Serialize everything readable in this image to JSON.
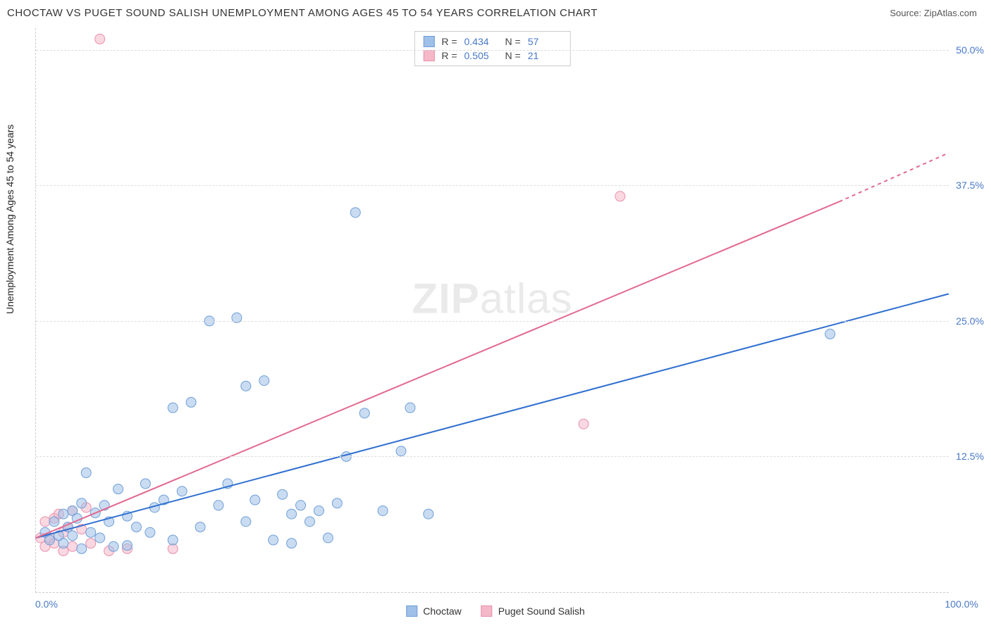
{
  "header": {
    "title": "CHOCTAW VS PUGET SOUND SALISH UNEMPLOYMENT AMONG AGES 45 TO 54 YEARS CORRELATION CHART",
    "source_prefix": "Source: ",
    "source_link": "ZipAtlas.com"
  },
  "chart": {
    "type": "scatter",
    "ylabel": "Unemployment Among Ages 45 to 54 years",
    "xlim": [
      0,
      100
    ],
    "ylim": [
      0,
      52
    ],
    "y_ticks": [
      {
        "v": 12.5,
        "label": "12.5%"
      },
      {
        "v": 25.0,
        "label": "25.0%"
      },
      {
        "v": 37.5,
        "label": "37.5%"
      },
      {
        "v": 50.0,
        "label": "50.0%"
      }
    ],
    "x_ticks": [
      {
        "v": 0,
        "label": "0.0%"
      },
      {
        "v": 100,
        "label": "100.0%"
      }
    ],
    "grid_color": "#dddddd",
    "background_color": "#ffffff",
    "marker_radius": 7,
    "marker_opacity": 0.55,
    "line_width": 2,
    "series": [
      {
        "name": "Choctaw",
        "color_fill": "#9fc0e8",
        "color_stroke": "#6f9fd8",
        "line_color": "#2f6fd0",
        "R": "0.434",
        "N": "57",
        "trend": {
          "x1": 0,
          "y1": 5.0,
          "x2": 100,
          "y2": 27.5,
          "dash_after_x": 100
        },
        "points": [
          [
            1,
            5.5
          ],
          [
            1.5,
            4.8
          ],
          [
            2,
            6.5
          ],
          [
            2.5,
            5.2
          ],
          [
            3,
            7.2
          ],
          [
            3,
            4.5
          ],
          [
            3.5,
            6.0
          ],
          [
            4,
            7.5
          ],
          [
            4,
            5.2
          ],
          [
            4.5,
            6.8
          ],
          [
            5,
            4.0
          ],
          [
            5,
            8.2
          ],
          [
            5.5,
            11.0
          ],
          [
            6,
            5.5
          ],
          [
            6.5,
            7.3
          ],
          [
            7,
            5.0
          ],
          [
            7.5,
            8.0
          ],
          [
            8,
            6.5
          ],
          [
            8.5,
            4.2
          ],
          [
            9,
            9.5
          ],
          [
            10,
            7.0
          ],
          [
            10,
            4.3
          ],
          [
            11,
            6.0
          ],
          [
            12,
            10.0
          ],
          [
            12.5,
            5.5
          ],
          [
            13,
            7.8
          ],
          [
            14,
            8.5
          ],
          [
            15,
            17.0
          ],
          [
            15,
            4.8
          ],
          [
            16,
            9.3
          ],
          [
            17,
            17.5
          ],
          [
            18,
            6.0
          ],
          [
            19,
            25.0
          ],
          [
            20,
            8.0
          ],
          [
            21,
            10.0
          ],
          [
            22,
            25.3
          ],
          [
            23,
            6.5
          ],
          [
            23,
            19.0
          ],
          [
            24,
            8.5
          ],
          [
            25,
            19.5
          ],
          [
            26,
            4.8
          ],
          [
            27,
            9.0
          ],
          [
            28,
            7.2
          ],
          [
            28,
            4.5
          ],
          [
            29,
            8.0
          ],
          [
            30,
            6.5
          ],
          [
            31,
            7.5
          ],
          [
            32,
            5.0
          ],
          [
            33,
            8.2
          ],
          [
            34,
            12.5
          ],
          [
            35,
            35.0
          ],
          [
            36,
            16.5
          ],
          [
            38,
            7.5
          ],
          [
            40,
            13.0
          ],
          [
            41,
            17.0
          ],
          [
            43,
            7.2
          ],
          [
            87,
            23.8
          ]
        ]
      },
      {
        "name": "Puget Sound Salish",
        "color_fill": "#f5b8c8",
        "color_stroke": "#e890ac",
        "line_color": "#e26a8f",
        "R": "0.505",
        "N": "21",
        "trend": {
          "x1": 0,
          "y1": 5.0,
          "x2": 88,
          "y2": 36.0,
          "dash_after_x": 88,
          "x3": 100,
          "y3": 40.5
        },
        "points": [
          [
            0.5,
            5.0
          ],
          [
            1,
            4.2
          ],
          [
            1,
            6.5
          ],
          [
            1.5,
            5.0
          ],
          [
            2,
            6.8
          ],
          [
            2,
            4.5
          ],
          [
            2.5,
            7.2
          ],
          [
            3,
            5.5
          ],
          [
            3,
            3.8
          ],
          [
            3.5,
            6.0
          ],
          [
            4,
            7.5
          ],
          [
            4,
            4.2
          ],
          [
            5,
            5.8
          ],
          [
            5.5,
            7.8
          ],
          [
            6,
            4.5
          ],
          [
            7,
            51.0
          ],
          [
            8,
            3.8
          ],
          [
            10,
            4.0
          ],
          [
            15,
            4.0
          ],
          [
            60,
            15.5
          ],
          [
            64,
            36.5
          ]
        ]
      }
    ],
    "legend_box": {
      "R_label": "R =",
      "N_label": "N ="
    },
    "bottom_legend": {
      "items": [
        "Choctaw",
        "Puget Sound Salish"
      ]
    },
    "watermark_bold": "ZIP",
    "watermark_light": "atlas"
  }
}
